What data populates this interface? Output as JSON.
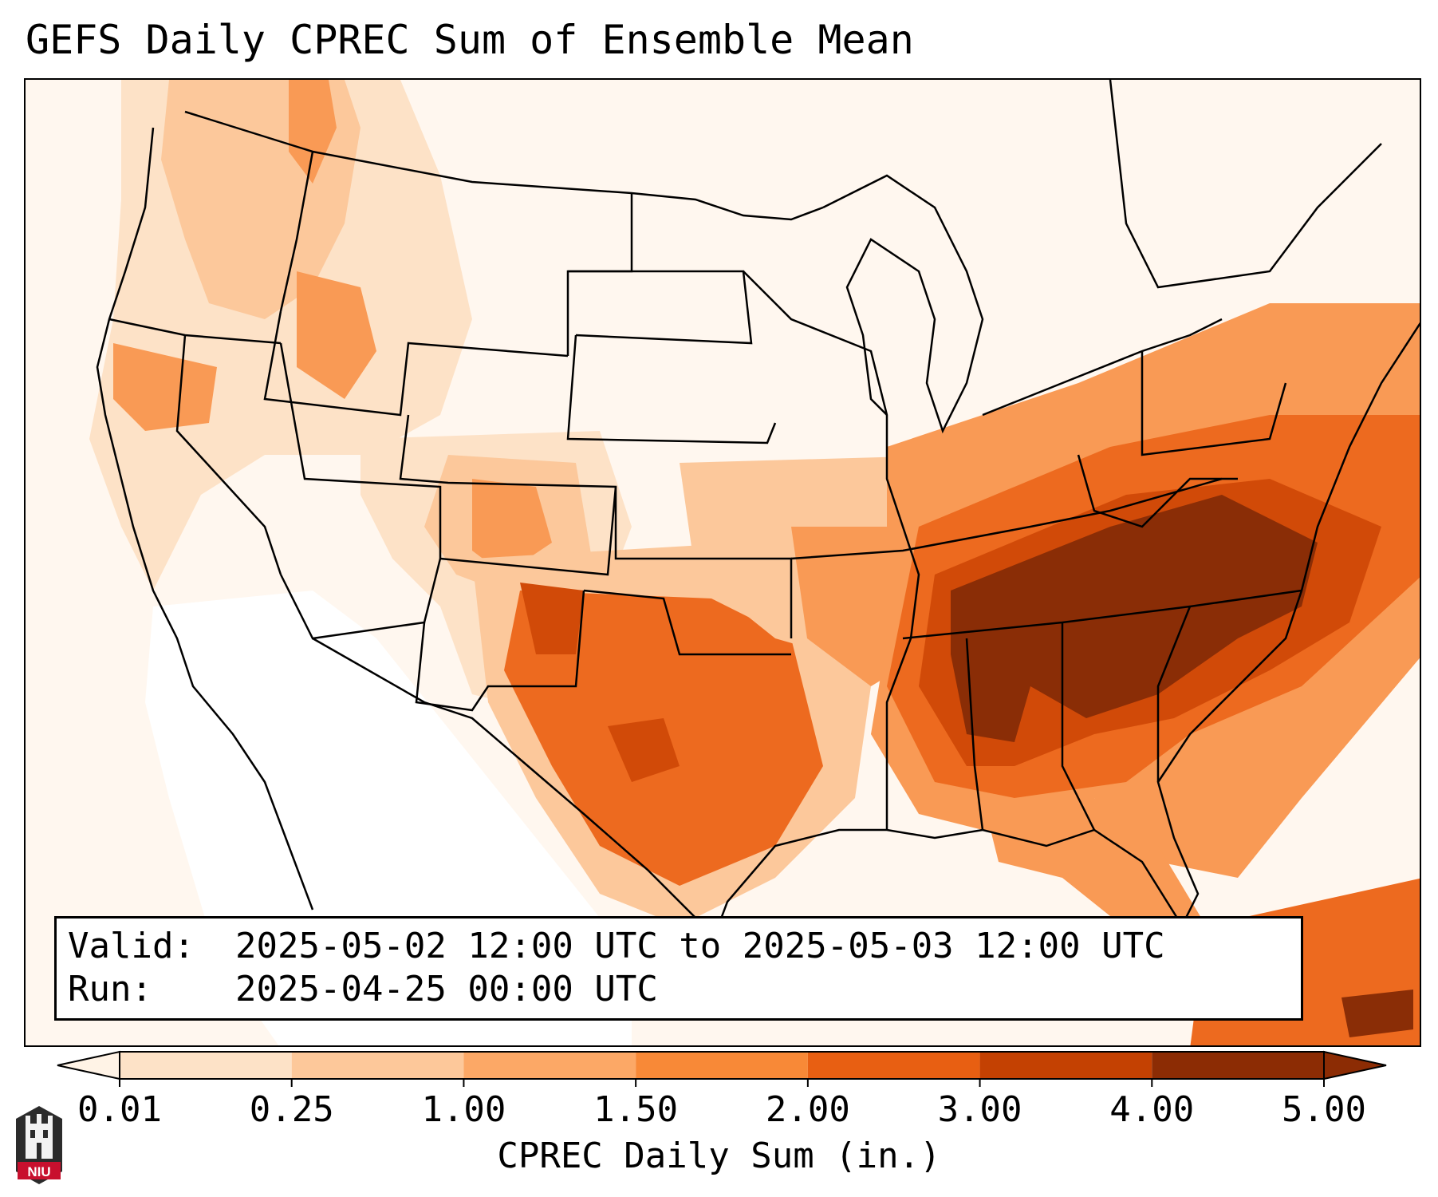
{
  "title": "GEFS Daily CPREC Sum of Ensemble Mean",
  "info": {
    "valid_label": "Valid:",
    "valid_value": "2025-05-02 12:00 UTC to 2025-05-03 12:00 UTC",
    "run_label": "Run:",
    "run_value": "2025-04-25 00:00 UTC"
  },
  "colorbar": {
    "label": "CPREC Daily Sum (in.)",
    "ticks": [
      "0.01",
      "0.25",
      "1.00",
      "1.50",
      "2.00",
      "3.00",
      "4.00",
      "5.00"
    ],
    "colors": [
      "#fff3e6",
      "#fde2c7",
      "#fdc89a",
      "#fca866",
      "#f88937",
      "#e85f12",
      "#c44102",
      "#8c2c04"
    ],
    "extend": "both"
  },
  "logo": {
    "text": "NIU"
  },
  "map": {
    "region": "Contiguous United States",
    "palette": {
      "background": "#fff7ef",
      "very_light": "#fde6d0",
      "light": "#fcc89b",
      "medium": "#f99a55",
      "strong": "#ed6a1f",
      "heavy": "#d14a08",
      "extreme": "#8a2d06"
    }
  }
}
